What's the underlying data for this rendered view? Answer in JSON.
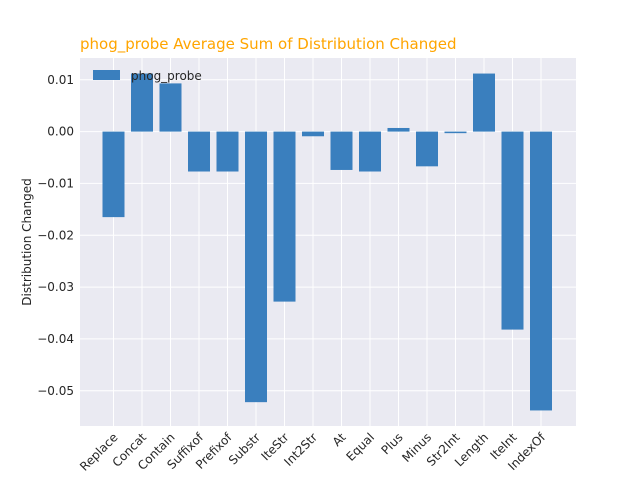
{
  "chart_data": {
    "type": "bar",
    "title": "phog_probe Average Sum of Distribution Changed",
    "ylabel": "Distribution Changed",
    "xlabel": "",
    "categories": [
      "Replace",
      "Concat",
      "Contain",
      "Suffixof",
      "Prefixof",
      "Substr",
      "IteStr",
      "Int2Str",
      "At",
      "Equal",
      "Plus",
      "Minus",
      "Str2Int",
      "Length",
      "IteInt",
      "IndexOf"
    ],
    "series": [
      {
        "name": "phog_probe",
        "values": [
          -0.0165,
          0.0112,
          0.0093,
          -0.0077,
          -0.0077,
          -0.0522,
          -0.0328,
          -0.0009,
          -0.0074,
          -0.0077,
          0.0007,
          -0.0067,
          -0.0003,
          0.0112,
          -0.0382,
          -0.0538
        ]
      }
    ],
    "ylim": [
      -0.0568,
      0.0142
    ],
    "yticks": [
      0.01,
      0.0,
      -0.01,
      -0.02,
      -0.03,
      -0.04,
      -0.05
    ],
    "ytick_labels": [
      "0.01",
      "0.00",
      "−0.01",
      "−0.02",
      "−0.03",
      "−0.04",
      "−0.05"
    ],
    "grid": true,
    "legend_position": "top-left",
    "colors": {
      "bar": "#3a7fbe",
      "title": "#ffa500",
      "plot_bg": "#eaeaf2",
      "grid": "#ffffff"
    }
  }
}
